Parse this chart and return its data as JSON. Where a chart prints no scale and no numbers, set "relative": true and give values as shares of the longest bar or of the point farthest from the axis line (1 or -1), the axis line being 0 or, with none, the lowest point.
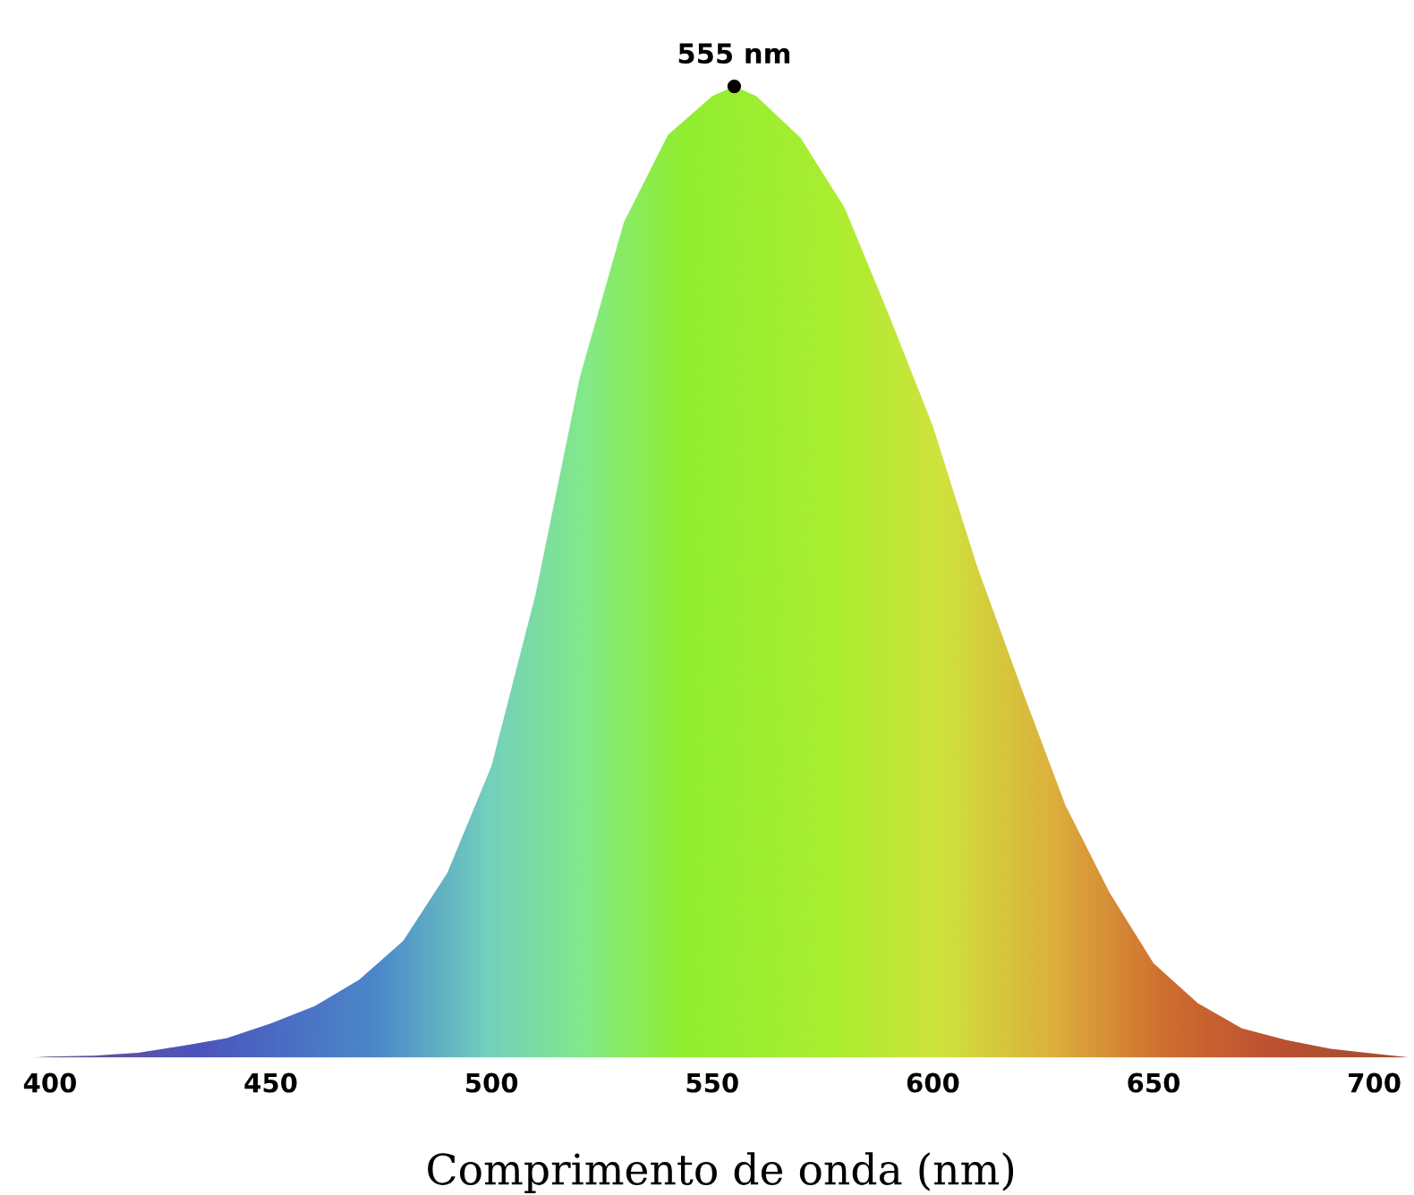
{
  "chart_data": {
    "type": "area",
    "relative": true,
    "xlabel": "Comprimento de onda (nm)",
    "xlim": [
      395,
      709
    ],
    "xticks": [
      400,
      450,
      500,
      550,
      600,
      650,
      700
    ],
    "grid": false,
    "legend": false,
    "annotations": [
      {
        "text": "555 nm",
        "x": 555,
        "y": 1.0
      }
    ],
    "x": [
      396,
      400,
      410,
      420,
      430,
      440,
      450,
      460,
      470,
      480,
      490,
      500,
      510,
      520,
      530,
      540,
      550,
      555,
      560,
      570,
      580,
      590,
      600,
      610,
      620,
      630,
      640,
      650,
      660,
      670,
      680,
      690,
      700,
      708
    ],
    "series": [
      {
        "color": "#90ee30",
        "values": [
          0,
          0.001,
          0.002,
          0.005,
          0.012,
          0.02,
          0.035,
          0.053,
          0.08,
          0.12,
          0.19,
          0.3,
          0.477,
          0.7,
          0.86,
          0.95,
          0.99,
          1.0,
          0.99,
          0.947,
          0.875,
          0.765,
          0.65,
          0.506,
          0.381,
          0.26,
          0.17,
          0.097,
          0.056,
          0.03,
          0.018,
          0.009,
          0.004,
          0
        ]
      }
    ]
  }
}
